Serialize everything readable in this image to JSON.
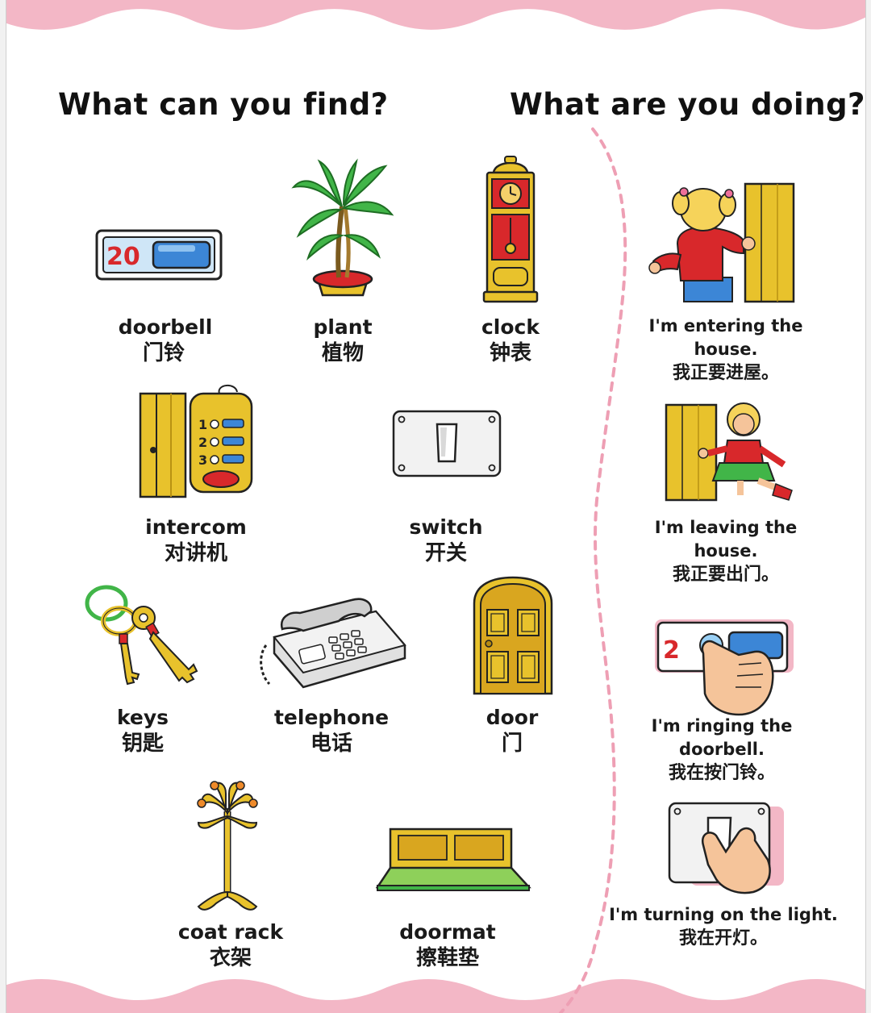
{
  "headings": {
    "find": "What can you find?",
    "doing": "What are you doing?"
  },
  "items": [
    {
      "en": "doorbell",
      "zh": "门铃",
      "icon": "doorbell-icon"
    },
    {
      "en": "plant",
      "zh": "植物",
      "icon": "plant-icon"
    },
    {
      "en": "clock",
      "zh": "钟表",
      "icon": "clock-icon"
    },
    {
      "en": "intercom",
      "zh": "对讲机",
      "icon": "intercom-icon"
    },
    {
      "en": "switch",
      "zh": "开关",
      "icon": "switch-icon"
    },
    {
      "en": "keys",
      "zh": "钥匙",
      "icon": "keys-icon"
    },
    {
      "en": "telephone",
      "zh": "电话",
      "icon": "telephone-icon"
    },
    {
      "en": "door",
      "zh": "门",
      "icon": "door-icon"
    },
    {
      "en": "coat rack",
      "zh": "衣架",
      "icon": "coat-rack-icon"
    },
    {
      "en": "doormat",
      "zh": "擦鞋垫",
      "icon": "doormat-icon"
    }
  ],
  "activities": [
    {
      "en": "I'm entering the house.",
      "zh": "我正要进屋。",
      "icon": "girl-entering-icon"
    },
    {
      "en": "I'm leaving the house.",
      "zh": "我正要出门。",
      "icon": "girl-leaving-icon"
    },
    {
      "en": "I'm ringing the doorbell.",
      "zh": "我在按门铃。",
      "icon": "hand-ringing-doorbell-icon"
    },
    {
      "en": "I'm turning on the light.",
      "zh": "我在开灯。",
      "icon": "hand-switch-icon"
    }
  ],
  "doorbell_digits": "20",
  "intercom_digits": [
    "1",
    "2",
    "3"
  ],
  "ringing_digit": "2",
  "colors": {
    "pink": "#f3b7c6",
    "gold": "#e8c22c",
    "green": "#41b548",
    "blue": "#3c86d6",
    "red": "#d8282b"
  }
}
